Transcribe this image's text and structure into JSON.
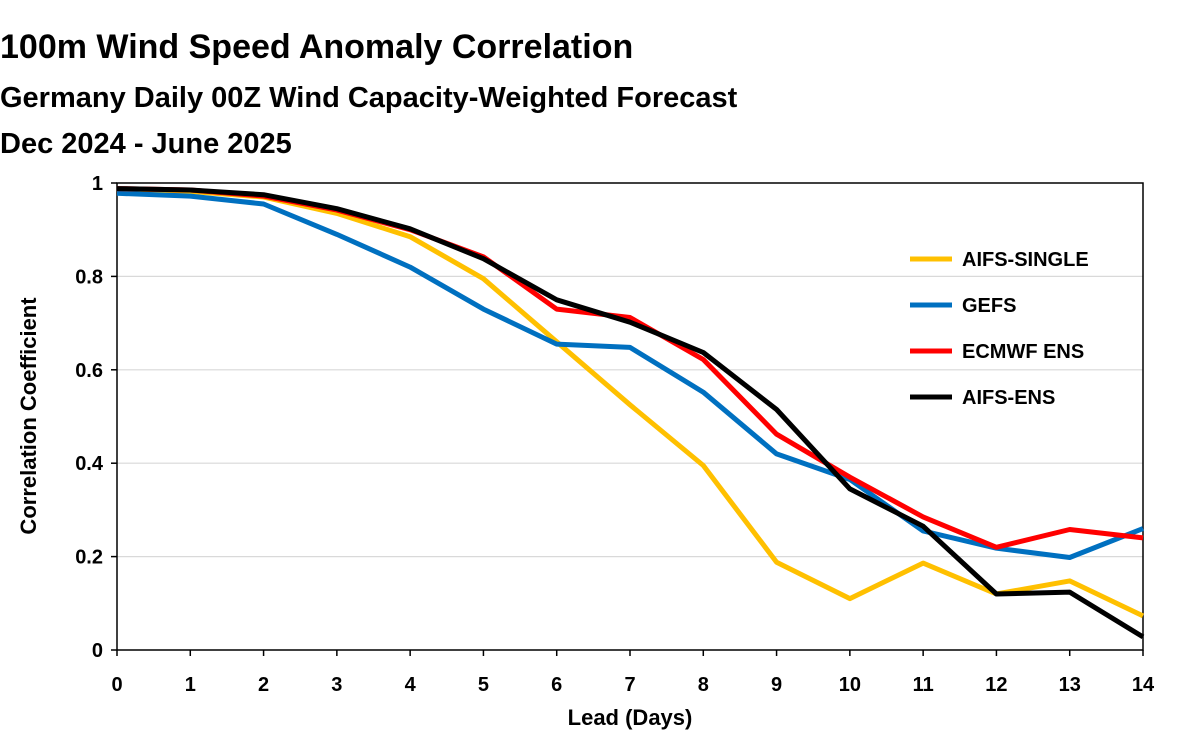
{
  "chart_data": {
    "type": "line",
    "title": "100m Wind Speed Anomaly Correlation",
    "subtitle": "Germany Daily 00Z Wind Capacity-Weighted Forecast",
    "subtitle2": "Dec 2024 - June 2025",
    "xlabel": "Lead (Days)",
    "ylabel": "Correlation Coefficient",
    "x": [
      0,
      1,
      2,
      3,
      4,
      5,
      6,
      7,
      8,
      9,
      10,
      11,
      12,
      13,
      14
    ],
    "xlim": [
      0,
      14
    ],
    "ylim": [
      0,
      1
    ],
    "yticks": [
      "0",
      "0.2",
      "0.4",
      "0.6",
      "0.8",
      "1"
    ],
    "xticks": [
      "0",
      "1",
      "2",
      "3",
      "4",
      "5",
      "6",
      "7",
      "8",
      "9",
      "10",
      "11",
      "12",
      "13",
      "14"
    ],
    "grid": true,
    "legend_position": "right",
    "series": [
      {
        "name": "AIFS-SINGLE",
        "color": "#FFC000",
        "values": [
          0.985,
          0.982,
          0.97,
          0.935,
          0.885,
          0.795,
          0.66,
          0.525,
          0.395,
          0.188,
          0.11,
          0.186,
          0.12,
          0.148,
          0.073
        ]
      },
      {
        "name": "GEFS",
        "color": "#0070C0",
        "values": [
          0.978,
          0.972,
          0.955,
          0.89,
          0.82,
          0.73,
          0.655,
          0.648,
          0.552,
          0.42,
          0.365,
          0.255,
          0.218,
          0.198,
          0.26
        ]
      },
      {
        "name": "ECMWF ENS",
        "color": "#FF0000",
        "values": [
          0.988,
          0.985,
          0.972,
          0.942,
          0.9,
          0.842,
          0.73,
          0.712,
          0.622,
          0.462,
          0.37,
          0.285,
          0.22,
          0.258,
          0.24
        ]
      },
      {
        "name": "AIFS-ENS",
        "color": "#000000",
        "values": [
          0.988,
          0.985,
          0.975,
          0.945,
          0.902,
          0.838,
          0.75,
          0.702,
          0.637,
          0.515,
          0.345,
          0.265,
          0.12,
          0.124,
          0.028
        ]
      }
    ]
  }
}
